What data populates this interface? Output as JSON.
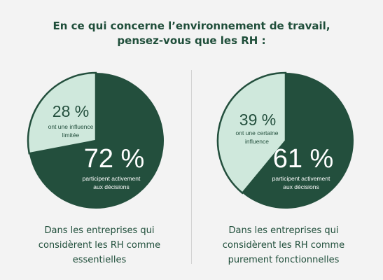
{
  "title": {
    "line1": "En ce qui concerne l’environnement de travail,",
    "line2": "pensez-vous que les RH :"
  },
  "colors": {
    "dark": "#234f3d",
    "light": "#cfe8dc",
    "text": "#1f4e3a",
    "divider": "#d3d3d3"
  },
  "chart_data": [
    {
      "type": "pie",
      "title": "",
      "slices": [
        {
          "value": 28,
          "value_label": "28 %",
          "label_lines": [
            "ont une influence",
            "limitée"
          ]
        },
        {
          "value": 72,
          "value_label": "72 %",
          "label_lines": [
            "participent activement",
            "aux décisions"
          ]
        }
      ],
      "caption_lines": [
        "Dans les entreprises qui",
        "considèrent les RH comme",
        "essentielles"
      ]
    },
    {
      "type": "pie",
      "title": "",
      "slices": [
        {
          "value": 39,
          "value_label": "39 %",
          "label_lines": [
            "ont une certaine",
            "influence"
          ]
        },
        {
          "value": 61,
          "value_label": "61 %",
          "label_lines": [
            "participent activement",
            "aux décisions"
          ]
        }
      ],
      "caption_lines": [
        "Dans les entreprises qui",
        "considèrent les RH comme",
        "purement fonctionnelles"
      ]
    }
  ]
}
